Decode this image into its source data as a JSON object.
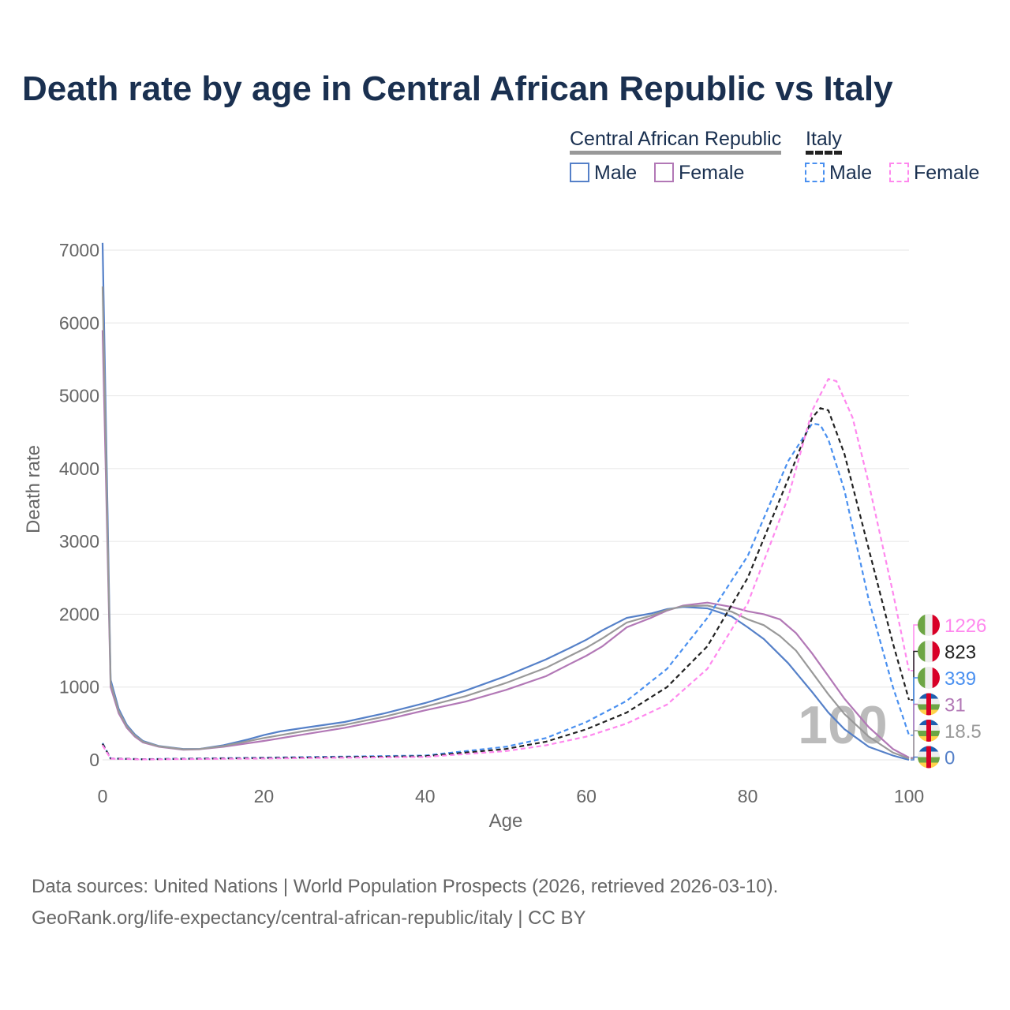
{
  "chart_data": {
    "type": "line",
    "title": "Death rate by age in Central African Republic vs Italy",
    "xlabel": "Age",
    "ylabel": "Death rate",
    "xlim": [
      0,
      100
    ],
    "ylim": [
      0,
      7000
    ],
    "xticks": [
      "0",
      "20",
      "40",
      "60",
      "80",
      "100"
    ],
    "yticks": [
      "0",
      "1000",
      "2000",
      "3000",
      "4000",
      "5000",
      "6000",
      "7000"
    ],
    "grid": true,
    "hover_age": "100",
    "legend": {
      "group1": "Central African Republic",
      "group2": "Italy",
      "male": "Male",
      "female": "Female"
    },
    "series": [
      {
        "name": "Central African Republic Male",
        "color": "#5580c8",
        "dash": false,
        "end_label": "0",
        "x": [
          0,
          1,
          2,
          3,
          4,
          5,
          7,
          10,
          12,
          15,
          18,
          20,
          22,
          25,
          30,
          35,
          40,
          45,
          50,
          55,
          58,
          60,
          62,
          65,
          68,
          70,
          72,
          75,
          78,
          80,
          82,
          85,
          88,
          90,
          92,
          95,
          98,
          100
        ],
        "y": [
          7100,
          1100,
          700,
          480,
          350,
          260,
          190,
          150,
          150,
          200,
          280,
          340,
          390,
          440,
          520,
          640,
          780,
          950,
          1150,
          1380,
          1540,
          1650,
          1780,
          1950,
          2010,
          2070,
          2100,
          2080,
          1970,
          1820,
          1660,
          1330,
          930,
          650,
          420,
          180,
          60,
          0
        ]
      },
      {
        "name": "Central African Republic Female",
        "color": "#b278b6",
        "dash": false,
        "end_label": "31",
        "x": [
          0,
          1,
          2,
          3,
          4,
          5,
          7,
          10,
          12,
          15,
          20,
          25,
          30,
          35,
          40,
          45,
          50,
          55,
          58,
          60,
          62,
          65,
          68,
          70,
          72,
          75,
          78,
          80,
          82,
          84,
          86,
          88,
          90,
          92,
          95,
          98,
          100
        ],
        "y": [
          5900,
          1000,
          640,
          440,
          320,
          240,
          180,
          140,
          145,
          180,
          260,
          350,
          440,
          550,
          680,
          800,
          960,
          1150,
          1320,
          1430,
          1560,
          1820,
          1950,
          2050,
          2120,
          2160,
          2100,
          2040,
          2000,
          1930,
          1740,
          1460,
          1150,
          840,
          450,
          150,
          31
        ]
      },
      {
        "name": "Central African Republic Total",
        "color": "#999999",
        "dash": false,
        "end_label": "18.5",
        "x": [
          0,
          1,
          2,
          3,
          4,
          5,
          7,
          10,
          12,
          15,
          20,
          25,
          30,
          35,
          40,
          45,
          50,
          55,
          58,
          60,
          62,
          65,
          68,
          70,
          72,
          75,
          78,
          80,
          82,
          84,
          86,
          88,
          90,
          92,
          95,
          98,
          100
        ],
        "y": [
          6500,
          1050,
          670,
          460,
          335,
          250,
          185,
          145,
          148,
          190,
          300,
          395,
          480,
          595,
          730,
          875,
          1055,
          1265,
          1430,
          1540,
          1670,
          1885,
          1980,
          2060,
          2110,
          2120,
          2035,
          1930,
          1850,
          1700,
          1500,
          1200,
          900,
          630,
          320,
          100,
          18.5
        ]
      },
      {
        "name": "Italy Male",
        "color": "#4a90f0",
        "dash": true,
        "end_label": "339",
        "x": [
          0,
          1,
          5,
          20,
          40,
          50,
          55,
          60,
          65,
          70,
          75,
          80,
          85,
          88,
          89,
          90,
          92,
          95,
          98,
          100
        ],
        "y": [
          230,
          20,
          10,
          30,
          60,
          180,
          300,
          520,
          810,
          1250,
          1950,
          2800,
          4100,
          4620,
          4600,
          4400,
          3700,
          2200,
          1000,
          339
        ]
      },
      {
        "name": "Italy Total",
        "color": "#222222",
        "dash": true,
        "end_label": "823",
        "x": [
          0,
          1,
          5,
          20,
          40,
          50,
          55,
          60,
          65,
          70,
          75,
          80,
          85,
          88,
          89,
          90,
          92,
          95,
          98,
          100
        ],
        "y": [
          220,
          18,
          8,
          25,
          50,
          150,
          250,
          420,
          650,
          1000,
          1560,
          2500,
          3850,
          4700,
          4830,
          4800,
          4200,
          2900,
          1600,
          823
        ]
      },
      {
        "name": "Italy Female",
        "color": "#ff88ee",
        "dash": true,
        "end_label": "1226",
        "x": [
          0,
          1,
          5,
          20,
          40,
          50,
          55,
          60,
          65,
          70,
          75,
          80,
          85,
          88,
          90,
          91,
          93,
          95,
          98,
          100
        ],
        "y": [
          200,
          16,
          7,
          18,
          40,
          120,
          200,
          320,
          500,
          760,
          1250,
          2150,
          3600,
          4800,
          5230,
          5200,
          4700,
          3800,
          2300,
          1226
        ]
      }
    ]
  },
  "footer": {
    "line1": "Data sources: United Nations | World Population Prospects (2026, retrieved 2026-03-10).",
    "line2": "GeoRank.org/life-expectancy/central-african-republic/italy | CC BY"
  }
}
